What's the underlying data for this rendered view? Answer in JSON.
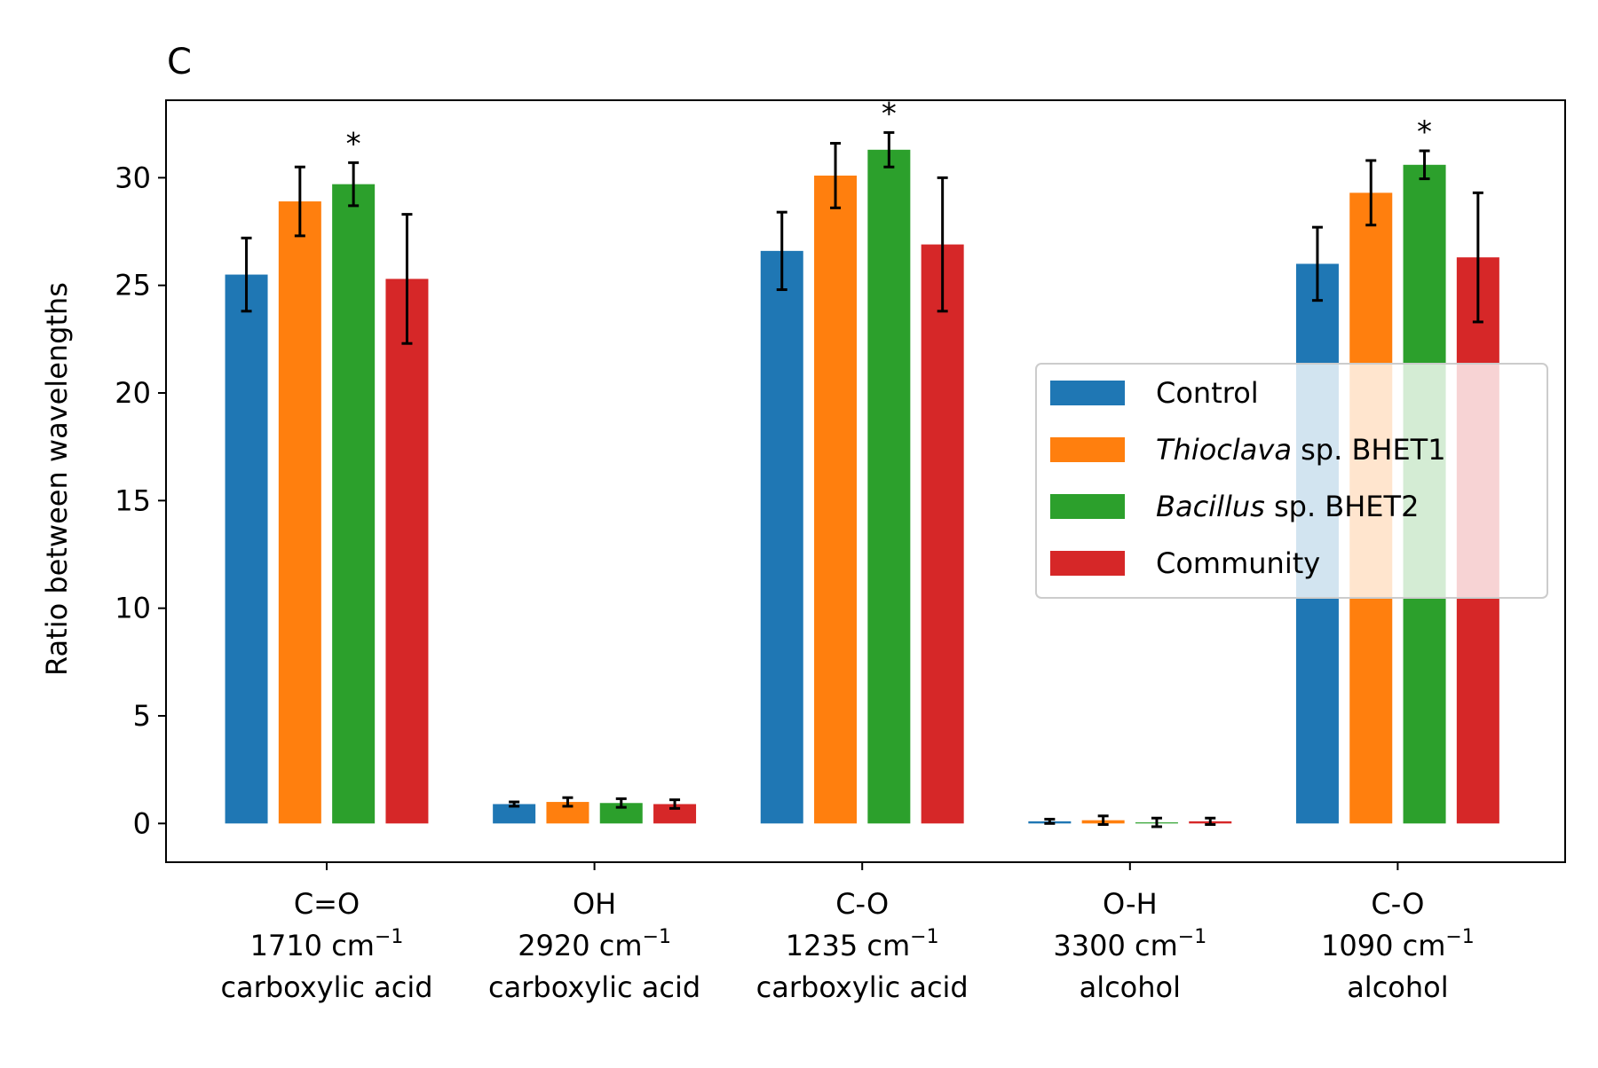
{
  "panel_label": "C",
  "chart_data": {
    "type": "bar",
    "title": "",
    "xlabel": "",
    "ylabel": "Ratio between wavelengths",
    "ylim": [
      -1.8,
      33.6
    ],
    "yticks": [
      0,
      5,
      10,
      15,
      20,
      25,
      30
    ],
    "categories": [
      {
        "bond": "C=O",
        "wavenumber": "1710 cm",
        "exponent": "−1",
        "group": "carboxylic acid"
      },
      {
        "bond": "OH",
        "wavenumber": "2920 cm",
        "exponent": "−1",
        "group": "carboxylic acid"
      },
      {
        "bond": "C-O",
        "wavenumber": "1235 cm",
        "exponent": "−1",
        "group": "carboxylic acid"
      },
      {
        "bond": "O-H",
        "wavenumber": "3300 cm",
        "exponent": "−1",
        "group": "alcohol"
      },
      {
        "bond": "C-O",
        "wavenumber": "1090 cm",
        "exponent": "−1",
        "group": "alcohol"
      }
    ],
    "series": [
      {
        "name": "Control",
        "name_italic": "",
        "name_rest": "Control",
        "color": "#1f77b4",
        "values": [
          25.5,
          0.9,
          26.6,
          0.1,
          26.0
        ],
        "errors": [
          1.7,
          0.1,
          1.8,
          0.1,
          1.7
        ]
      },
      {
        "name": "Thioclava sp. BHET1",
        "name_italic": "Thioclava",
        "name_rest": " sp. BHET1",
        "color": "#ff7f0e",
        "values": [
          28.9,
          1.0,
          30.1,
          0.15,
          29.3
        ],
        "errors": [
          1.6,
          0.2,
          1.5,
          0.2,
          1.5
        ]
      },
      {
        "name": "Bacillus sp. BHET2",
        "name_italic": "Bacillus",
        "name_rest": " sp. BHET2",
        "color": "#2ca02c",
        "values": [
          29.7,
          0.95,
          31.3,
          0.05,
          30.6
        ],
        "errors": [
          1.0,
          0.2,
          0.8,
          0.2,
          0.65
        ]
      },
      {
        "name": "Community",
        "name_italic": "",
        "name_rest": "Community",
        "color": "#d62728",
        "values": [
          25.3,
          0.9,
          26.9,
          0.1,
          26.3
        ],
        "errors": [
          3.0,
          0.2,
          3.1,
          0.15,
          3.0
        ]
      }
    ],
    "significance": [
      {
        "category": 0,
        "series": 2,
        "label": "*"
      },
      {
        "category": 2,
        "series": 2,
        "label": "*"
      },
      {
        "category": 4,
        "series": 2,
        "label": "*"
      }
    ],
    "legend": {
      "placement": "center-right"
    },
    "grid": false
  }
}
